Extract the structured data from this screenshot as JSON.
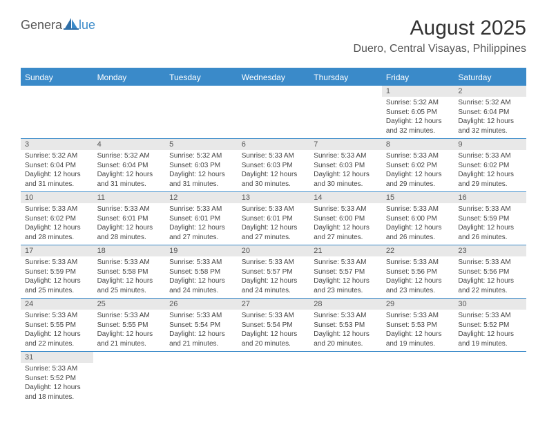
{
  "logo": {
    "text1": "Genera",
    "text2": "lue"
  },
  "title": "August 2025",
  "location": "Duero, Central Visayas, Philippines",
  "colors": {
    "accent": "#3a8ac9",
    "header_bg": "#3a8ac9",
    "header_text": "#ffffff",
    "daynum_bg": "#e8e8e8",
    "text": "#333333",
    "muted": "#555555"
  },
  "weekdays": [
    "Sunday",
    "Monday",
    "Tuesday",
    "Wednesday",
    "Thursday",
    "Friday",
    "Saturday"
  ],
  "weeks": [
    [
      {
        "empty": true
      },
      {
        "empty": true
      },
      {
        "empty": true
      },
      {
        "empty": true
      },
      {
        "empty": true
      },
      {
        "n": "1",
        "sunrise": "Sunrise: 5:32 AM",
        "sunset": "Sunset: 6:05 PM",
        "dl1": "Daylight: 12 hours",
        "dl2": "and 32 minutes."
      },
      {
        "n": "2",
        "sunrise": "Sunrise: 5:32 AM",
        "sunset": "Sunset: 6:04 PM",
        "dl1": "Daylight: 12 hours",
        "dl2": "and 32 minutes."
      }
    ],
    [
      {
        "n": "3",
        "sunrise": "Sunrise: 5:32 AM",
        "sunset": "Sunset: 6:04 PM",
        "dl1": "Daylight: 12 hours",
        "dl2": "and 31 minutes."
      },
      {
        "n": "4",
        "sunrise": "Sunrise: 5:32 AM",
        "sunset": "Sunset: 6:04 PM",
        "dl1": "Daylight: 12 hours",
        "dl2": "and 31 minutes."
      },
      {
        "n": "5",
        "sunrise": "Sunrise: 5:32 AM",
        "sunset": "Sunset: 6:03 PM",
        "dl1": "Daylight: 12 hours",
        "dl2": "and 31 minutes."
      },
      {
        "n": "6",
        "sunrise": "Sunrise: 5:33 AM",
        "sunset": "Sunset: 6:03 PM",
        "dl1": "Daylight: 12 hours",
        "dl2": "and 30 minutes."
      },
      {
        "n": "7",
        "sunrise": "Sunrise: 5:33 AM",
        "sunset": "Sunset: 6:03 PM",
        "dl1": "Daylight: 12 hours",
        "dl2": "and 30 minutes."
      },
      {
        "n": "8",
        "sunrise": "Sunrise: 5:33 AM",
        "sunset": "Sunset: 6:02 PM",
        "dl1": "Daylight: 12 hours",
        "dl2": "and 29 minutes."
      },
      {
        "n": "9",
        "sunrise": "Sunrise: 5:33 AM",
        "sunset": "Sunset: 6:02 PM",
        "dl1": "Daylight: 12 hours",
        "dl2": "and 29 minutes."
      }
    ],
    [
      {
        "n": "10",
        "sunrise": "Sunrise: 5:33 AM",
        "sunset": "Sunset: 6:02 PM",
        "dl1": "Daylight: 12 hours",
        "dl2": "and 28 minutes."
      },
      {
        "n": "11",
        "sunrise": "Sunrise: 5:33 AM",
        "sunset": "Sunset: 6:01 PM",
        "dl1": "Daylight: 12 hours",
        "dl2": "and 28 minutes."
      },
      {
        "n": "12",
        "sunrise": "Sunrise: 5:33 AM",
        "sunset": "Sunset: 6:01 PM",
        "dl1": "Daylight: 12 hours",
        "dl2": "and 27 minutes."
      },
      {
        "n": "13",
        "sunrise": "Sunrise: 5:33 AM",
        "sunset": "Sunset: 6:01 PM",
        "dl1": "Daylight: 12 hours",
        "dl2": "and 27 minutes."
      },
      {
        "n": "14",
        "sunrise": "Sunrise: 5:33 AM",
        "sunset": "Sunset: 6:00 PM",
        "dl1": "Daylight: 12 hours",
        "dl2": "and 27 minutes."
      },
      {
        "n": "15",
        "sunrise": "Sunrise: 5:33 AM",
        "sunset": "Sunset: 6:00 PM",
        "dl1": "Daylight: 12 hours",
        "dl2": "and 26 minutes."
      },
      {
        "n": "16",
        "sunrise": "Sunrise: 5:33 AM",
        "sunset": "Sunset: 5:59 PM",
        "dl1": "Daylight: 12 hours",
        "dl2": "and 26 minutes."
      }
    ],
    [
      {
        "n": "17",
        "sunrise": "Sunrise: 5:33 AM",
        "sunset": "Sunset: 5:59 PM",
        "dl1": "Daylight: 12 hours",
        "dl2": "and 25 minutes."
      },
      {
        "n": "18",
        "sunrise": "Sunrise: 5:33 AM",
        "sunset": "Sunset: 5:58 PM",
        "dl1": "Daylight: 12 hours",
        "dl2": "and 25 minutes."
      },
      {
        "n": "19",
        "sunrise": "Sunrise: 5:33 AM",
        "sunset": "Sunset: 5:58 PM",
        "dl1": "Daylight: 12 hours",
        "dl2": "and 24 minutes."
      },
      {
        "n": "20",
        "sunrise": "Sunrise: 5:33 AM",
        "sunset": "Sunset: 5:57 PM",
        "dl1": "Daylight: 12 hours",
        "dl2": "and 24 minutes."
      },
      {
        "n": "21",
        "sunrise": "Sunrise: 5:33 AM",
        "sunset": "Sunset: 5:57 PM",
        "dl1": "Daylight: 12 hours",
        "dl2": "and 23 minutes."
      },
      {
        "n": "22",
        "sunrise": "Sunrise: 5:33 AM",
        "sunset": "Sunset: 5:56 PM",
        "dl1": "Daylight: 12 hours",
        "dl2": "and 23 minutes."
      },
      {
        "n": "23",
        "sunrise": "Sunrise: 5:33 AM",
        "sunset": "Sunset: 5:56 PM",
        "dl1": "Daylight: 12 hours",
        "dl2": "and 22 minutes."
      }
    ],
    [
      {
        "n": "24",
        "sunrise": "Sunrise: 5:33 AM",
        "sunset": "Sunset: 5:55 PM",
        "dl1": "Daylight: 12 hours",
        "dl2": "and 22 minutes."
      },
      {
        "n": "25",
        "sunrise": "Sunrise: 5:33 AM",
        "sunset": "Sunset: 5:55 PM",
        "dl1": "Daylight: 12 hours",
        "dl2": "and 21 minutes."
      },
      {
        "n": "26",
        "sunrise": "Sunrise: 5:33 AM",
        "sunset": "Sunset: 5:54 PM",
        "dl1": "Daylight: 12 hours",
        "dl2": "and 21 minutes."
      },
      {
        "n": "27",
        "sunrise": "Sunrise: 5:33 AM",
        "sunset": "Sunset: 5:54 PM",
        "dl1": "Daylight: 12 hours",
        "dl2": "and 20 minutes."
      },
      {
        "n": "28",
        "sunrise": "Sunrise: 5:33 AM",
        "sunset": "Sunset: 5:53 PM",
        "dl1": "Daylight: 12 hours",
        "dl2": "and 20 minutes."
      },
      {
        "n": "29",
        "sunrise": "Sunrise: 5:33 AM",
        "sunset": "Sunset: 5:53 PM",
        "dl1": "Daylight: 12 hours",
        "dl2": "and 19 minutes."
      },
      {
        "n": "30",
        "sunrise": "Sunrise: 5:33 AM",
        "sunset": "Sunset: 5:52 PM",
        "dl1": "Daylight: 12 hours",
        "dl2": "and 19 minutes."
      }
    ],
    [
      {
        "n": "31",
        "sunrise": "Sunrise: 5:33 AM",
        "sunset": "Sunset: 5:52 PM",
        "dl1": "Daylight: 12 hours",
        "dl2": "and 18 minutes."
      },
      {
        "empty": true
      },
      {
        "empty": true
      },
      {
        "empty": true
      },
      {
        "empty": true
      },
      {
        "empty": true
      },
      {
        "empty": true
      }
    ]
  ]
}
